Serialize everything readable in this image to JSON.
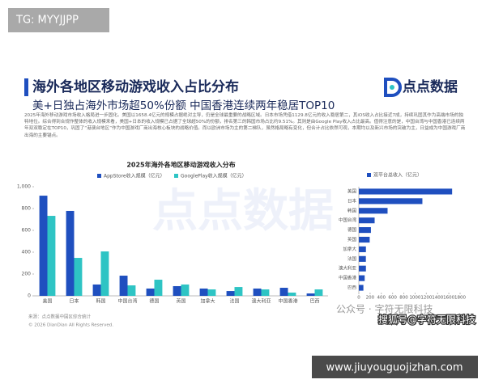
{
  "badge": "TG: MYYJJPP",
  "header": {
    "title": "海外各地区移动游戏收入占比分布",
    "subtitle": "美+日独占海外市场超50%份额 中国香港连续两年稳居TOP10",
    "brand": "点点数据"
  },
  "body": "2025年海外移动游戏市场收入格局进一步固化。美国以1658.4亿元的规模占据绝对主导，仍是全球最重要的战略区域。日本市场凭借1129.8亿元的收入稳居第二，其iOS收入占比接近7成，持续巩固其作为高端市场的独特地位。综合得到合规作整体的收入规模来看，美国+日本的收入规模已占据了全球超50%的份额，排名第三的韩国市场占比约9.51%。其则是由Google Play收入占比最高。值得注意的是，中国台湾与中国香港已连续两年双双稳定在TOP10，巩固了“港澳台地区”作为中国游戏厂商出海核心板块的战略价值。而以欧洲市场为主的第二梯队，虽然格局略有变化，但合计占比依然可观，本期均以及新兴市场的突破为主，日益成为中国游戏厂商出海的主要锚点。",
  "chart_data": [
    {
      "type": "bar",
      "title": "2025年海外各地区移动游戏收入分布",
      "categories": [
        "美国",
        "日本",
        "韩国",
        "中国台湾",
        "德国",
        "英国",
        "加拿大",
        "法国",
        "澳大利亚",
        "中国香港",
        "巴西"
      ],
      "series": [
        {
          "name": "AppStore收入规模（亿元）",
          "color": "#1f4fbf",
          "values": [
            918,
            778,
            104,
            185,
            67,
            89,
            67,
            44,
            67,
            74,
            22
          ]
        },
        {
          "name": "GooglePlay收入规模（亿元）",
          "color": "#2ec4c4",
          "values": [
            733,
            348,
            407,
            96,
            148,
            104,
            59,
            81,
            59,
            30,
            59
          ]
        }
      ],
      "ylim": [
        0,
        1000
      ],
      "yticks": [
        0,
        200,
        400,
        600,
        800,
        {
          "value": 1000,
          "label": "1,000"
        }
      ],
      "legend": "top"
    },
    {
      "type": "barh",
      "title": "双平台总收入（亿元）",
      "categories": [
        "美国",
        "日本",
        "韩国",
        "中国台湾",
        "德国",
        "英国",
        "加拿大",
        "法国",
        "澳大利亚",
        "中国香港",
        "巴西"
      ],
      "values": [
        1658.4,
        1129.8,
        511,
        281,
        215,
        193,
        126,
        125,
        126,
        104,
        81
      ],
      "color": "#1f4fbf",
      "xlim": [
        0,
        1800
      ],
      "xticks": [
        0,
        200,
        400,
        600,
        800,
        1000,
        1200,
        1400,
        1600,
        1800
      ]
    }
  ],
  "footer": {
    "source": "来源：点点数据中国区综合统计",
    "copyright": "© 2026 DianDian All Rights Reserved."
  },
  "watermarks": [
    "点点数据",
    "公众号 · 字符无限科技",
    "搜狐号@字符无限科技"
  ],
  "url": "www.jiuyouguojizhan.com"
}
